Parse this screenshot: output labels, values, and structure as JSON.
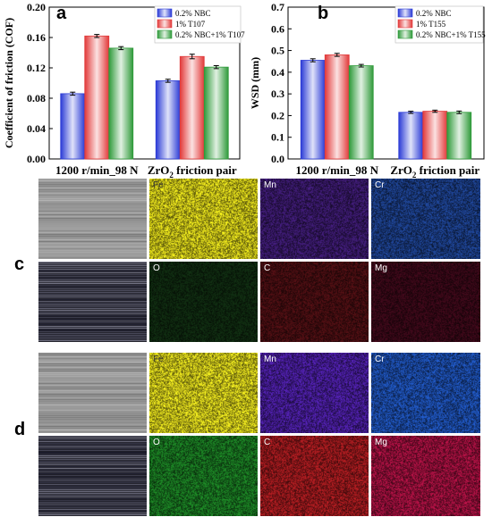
{
  "chart_data": [
    {
      "type": "bar",
      "panel": "a",
      "categories": [
        "1200 r/min_98 N",
        "ZrO2 friction pair"
      ],
      "ylabel": "Coefficient of friction (COF)",
      "xlabel": "",
      "ylim": [
        0.0,
        0.2
      ],
      "yticks": [
        "0.00",
        "0.04",
        "0.08",
        "0.12",
        "0.16",
        "0.20"
      ],
      "legend_placement": "top-right",
      "series": [
        {
          "name": "0.2% NBC",
          "color": "#2b3bd6",
          "values": [
            0.086,
            0.103
          ],
          "errors": [
            0.002,
            0.002
          ]
        },
        {
          "name": "1% T107",
          "color": "#e23a3a",
          "values": [
            0.162,
            0.135
          ],
          "errors": [
            0.002,
            0.003
          ]
        },
        {
          "name": "0.2% NBC+1% T107",
          "color": "#2f9a3a",
          "values": [
            0.146,
            0.121
          ],
          "errors": [
            0.002,
            0.002
          ]
        }
      ]
    },
    {
      "type": "bar",
      "panel": "b",
      "categories": [
        "1200 r/min_98 N",
        "ZrO2 friction pair"
      ],
      "ylabel": "WSD (mm)",
      "xlabel": "",
      "ylim": [
        0.0,
        0.7
      ],
      "yticks": [
        "0.0",
        "0.1",
        "0.2",
        "0.3",
        "0.4",
        "0.5",
        "0.6",
        "0.7"
      ],
      "legend_placement": "top-right",
      "series": [
        {
          "name": "0.2% NBC",
          "color": "#2b3bd6",
          "values": [
            0.455,
            0.215
          ],
          "errors": [
            0.007,
            0.005
          ]
        },
        {
          "name": "1% T155",
          "color": "#e23a3a",
          "values": [
            0.48,
            0.22
          ],
          "errors": [
            0.007,
            0.005
          ]
        },
        {
          "name": "0.2% NBC+1% T155",
          "color": "#2f9a3a",
          "values": [
            0.43,
            0.215
          ],
          "errors": [
            0.006,
            0.006
          ]
        }
      ]
    }
  ],
  "panels": {
    "a": "a",
    "b": "b",
    "c": "c",
    "d": "d"
  },
  "map_c": {
    "row1": [
      {
        "label": "",
        "color": "#8c8c8c"
      },
      {
        "label": "Fe",
        "color": "#d9d21a"
      },
      {
        "label": "Mn",
        "color": "#3b1a6e"
      },
      {
        "label": "Cr",
        "color": "#1c3f8a"
      }
    ],
    "row2": [
      {
        "label": "",
        "color": "#2a2a3a"
      },
      {
        "label": "O",
        "color": "#0f2a10"
      },
      {
        "label": "C",
        "color": "#4a0e12"
      },
      {
        "label": "Mg",
        "color": "#3a0818"
      }
    ]
  },
  "map_d": {
    "row1": [
      {
        "label": "",
        "color": "#9a9a9a"
      },
      {
        "label": "Fe",
        "color": "#dcd51c"
      },
      {
        "label": "Mn",
        "color": "#4a1ea0"
      },
      {
        "label": "Cr",
        "color": "#1d4fb0"
      }
    ],
    "row2": [
      {
        "label": "",
        "color": "#3a4050"
      },
      {
        "label": "O",
        "color": "#1a7a22"
      },
      {
        "label": "C",
        "color": "#a01a1e"
      },
      {
        "label": "Mg",
        "color": "#a0103e"
      }
    ]
  }
}
